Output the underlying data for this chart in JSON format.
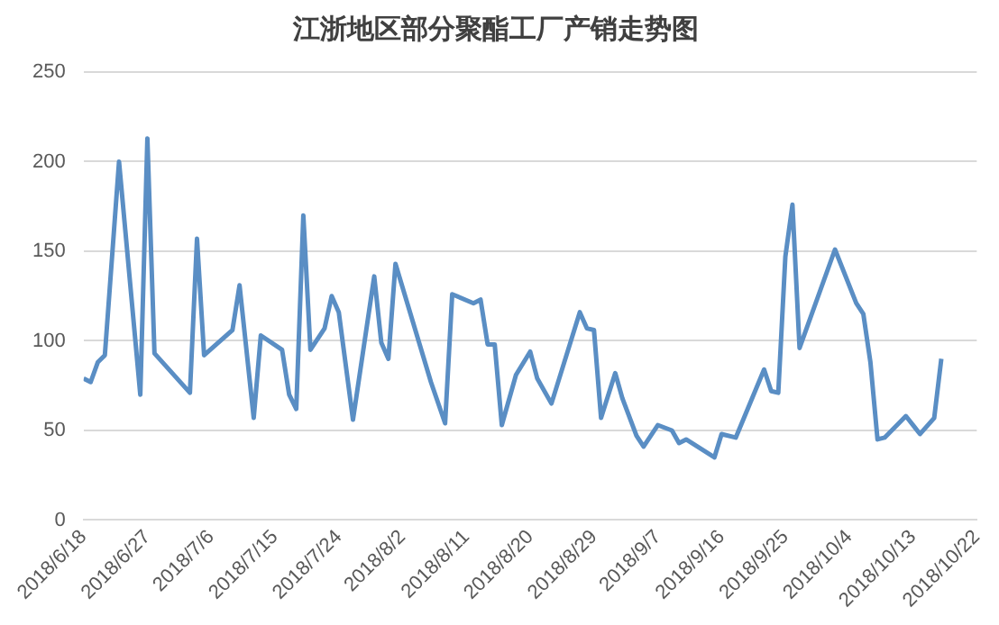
{
  "chart_data": {
    "type": "line",
    "title": "江浙地区部分聚酯工厂产销走势图",
    "x": [
      "2018-06-18",
      "2018-06-19",
      "2018-06-20",
      "2018-06-21",
      "2018-06-23",
      "2018-06-26",
      "2018-06-27",
      "2018-06-28",
      "2018-07-03",
      "2018-07-04",
      "2018-07-05",
      "2018-07-09",
      "2018-07-10",
      "2018-07-12",
      "2018-07-13",
      "2018-07-16",
      "2018-07-17",
      "2018-07-18",
      "2018-07-19",
      "2018-07-20",
      "2018-07-22",
      "2018-07-23",
      "2018-07-24",
      "2018-07-26",
      "2018-07-29",
      "2018-07-30",
      "2018-07-31",
      "2018-08-01",
      "2018-08-06",
      "2018-08-08",
      "2018-08-09",
      "2018-08-12",
      "2018-08-13",
      "2018-08-14",
      "2018-08-15",
      "2018-08-16",
      "2018-08-18",
      "2018-08-20",
      "2018-08-21",
      "2018-08-23",
      "2018-08-27",
      "2018-08-28",
      "2018-08-29",
      "2018-08-30",
      "2018-09-01",
      "2018-09-02",
      "2018-09-04",
      "2018-09-05",
      "2018-09-07",
      "2018-09-09",
      "2018-09-10",
      "2018-09-11",
      "2018-09-15",
      "2018-09-16",
      "2018-09-18",
      "2018-09-22",
      "2018-09-23",
      "2018-09-24",
      "2018-09-25",
      "2018-09-26",
      "2018-09-27",
      "2018-10-02",
      "2018-10-05",
      "2018-10-06",
      "2018-10-07",
      "2018-10-08",
      "2018-10-09",
      "2018-10-12",
      "2018-10-14",
      "2018-10-16",
      "2018-10-17"
    ],
    "series": [
      {
        "color": "#5a8ec4",
        "values": [
          79,
          77,
          88,
          92,
          200,
          70,
          213,
          93,
          71,
          157,
          92,
          106,
          131,
          57,
          103,
          95,
          70,
          62,
          170,
          95,
          107,
          125,
          116,
          56,
          136,
          99,
          90,
          143,
          77,
          54,
          126,
          121,
          123,
          98,
          98,
          53,
          81,
          94,
          79,
          65,
          116,
          107,
          106,
          57,
          82,
          68,
          47,
          41,
          53,
          50,
          43,
          45,
          35,
          48,
          46,
          84,
          72,
          71,
          147,
          176,
          96,
          151,
          121,
          115,
          88,
          45,
          46,
          58,
          48,
          57,
          90
        ]
      }
    ],
    "xlim": [
      "2018-06-18",
      "2018-10-22"
    ],
    "xticks": [
      {
        "value": "2018-06-18",
        "label": "2018/6/18"
      },
      {
        "value": "2018-06-27",
        "label": "2018/6/27"
      },
      {
        "value": "2018-07-06",
        "label": "2018/7/6"
      },
      {
        "value": "2018-07-15",
        "label": "2018/7/15"
      },
      {
        "value": "2018-07-24",
        "label": "2018/7/24"
      },
      {
        "value": "2018-08-02",
        "label": "2018/8/2"
      },
      {
        "value": "2018-08-11",
        "label": "2018/8/11"
      },
      {
        "value": "2018-08-20",
        "label": "2018/8/20"
      },
      {
        "value": "2018-08-29",
        "label": "2018/8/29"
      },
      {
        "value": "2018-09-07",
        "label": "2018/9/7"
      },
      {
        "value": "2018-09-16",
        "label": "2018/9/16"
      },
      {
        "value": "2018-09-25",
        "label": "2018/9/25"
      },
      {
        "value": "2018-10-04",
        "label": "2018/10/4"
      },
      {
        "value": "2018-10-13",
        "label": "2018/10/13"
      },
      {
        "value": "2018-10-22",
        "label": "2018/10/22"
      }
    ],
    "ylim": [
      0,
      250
    ],
    "yticks": [
      0,
      50,
      100,
      150,
      200,
      250
    ],
    "grid": "y",
    "marker": "none",
    "line_style": "solid"
  }
}
